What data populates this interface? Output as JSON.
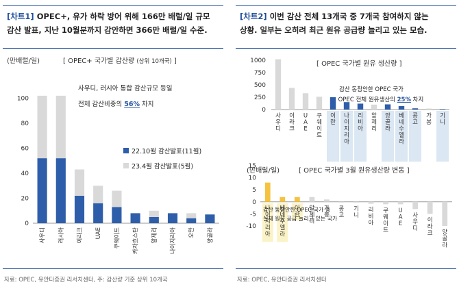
{
  "panel1": {
    "tag": "[차트1]",
    "title_line1": " OPEC+, 유가 하락 방어 위해 166만 배럴/일 규모",
    "title_line2": "감산 발표, 지난 10월분까지 감안하면 366만 배럴/일 수준.",
    "unit": "(만배럴/일)",
    "subtitle": "[ OPEC+ 국가별 감산량",
    "subtitle_small": "(상위 10개국)",
    "subtitle_close": "]",
    "annotation_line1": "사우디, 러시아 통합 감산규모 등일",
    "annotation_line2_pre": "전체 감산비중의 ",
    "annotation_line2_pct": "56%",
    "annotation_line2_post": " 차지",
    "source": "자료: OPEC, 유안타증권 리서치센터, 주: 감산량 기준 상위 10개국"
  },
  "panel2": {
    "tag": "[차트2]",
    "title_line1": " 이번 감산 전체 13개국 중 7개국 참여하지 않는",
    "title_line2": "상황. 일부는 오히려 최근 원유 공급량 늘리고 있는 모습.",
    "top_subtitle": "[ OPEC 국가별 원유 생산량 ]",
    "top_annotation_line1": "감산 동참안한 OPEC 국가",
    "top_annotation_line2_pre": "OPEC 전체 원유생산의 ",
    "top_annotation_line2_pct": "25%",
    "top_annotation_line2_post": " 차지",
    "bottom_unit": "(만배럴/일)",
    "bottom_subtitle": "[ OPEC 국가별 3월 원유생산량 변동 ]",
    "bottom_annotation_line1": "감산 동참안한 OPEC 국가 중",
    "bottom_annotation_line2": "실제 원유 공급 늘리고 있는 국가",
    "source": "자료: OPEC, 유안타증권 리서치센터"
  },
  "colors": {
    "accent": "#1f4e9c",
    "light_bar": "#d9d9d9",
    "dark_bar": "#2e5eaa",
    "yellow_bar": "#f5c242",
    "blue_highlight": "#dbe7f3",
    "yellow_highlight": "#fbf3c8"
  },
  "chart_data": [
    {
      "type": "bar",
      "categories": [
        "사우디",
        "러시아",
        "이라크",
        "UAE",
        "쿠웨이트",
        "카자흐스탄",
        "알제리",
        "나이지리아",
        "오만",
        "앙골라"
      ],
      "series": [
        {
          "name": "22.10월 감산발표(11월)",
          "values": [
            52,
            52,
            22,
            16,
            13,
            8,
            5,
            8,
            4,
            7
          ]
        },
        {
          "name": "23.4월 감산발표(5월)",
          "values": [
            50,
            50,
            21,
            14,
            13,
            0,
            5,
            0,
            4,
            0
          ]
        }
      ],
      "stacked": true,
      "ylim": [
        0,
        120
      ],
      "yticks": [
        0,
        20,
        40,
        60,
        80,
        100
      ],
      "legend": "right"
    },
    {
      "type": "bar",
      "categories": [
        "사우디",
        "이라크",
        "UAE",
        "쿠웨이트",
        "이란",
        "나이지리아",
        "리비아",
        "알제리",
        "앙골라",
        "베네수엘라",
        "콩고",
        "가봉",
        "기니"
      ],
      "values": [
        1020,
        440,
        330,
        260,
        250,
        150,
        120,
        100,
        105,
        70,
        25,
        20,
        10
      ],
      "highlight_categories": [
        "이란",
        "나이지리아",
        "리비아",
        "앙골라",
        "베네수엘라",
        "콩고",
        "기니"
      ],
      "ylim": [
        0,
        1000
      ],
      "yticks": [
        0,
        250,
        500,
        750,
        1000
      ]
    },
    {
      "type": "bar",
      "categories": [
        "나이지리아",
        "베네수엘라",
        "이란",
        "알제리",
        "가봉",
        "콩고",
        "기니",
        "리비아",
        "쿠웨이트",
        "UAE",
        "사우디",
        "이라크",
        "앙골라"
      ],
      "values": [
        8,
        2,
        2,
        2,
        1,
        -0.3,
        -0.3,
        -0.8,
        -1,
        -1,
        -3,
        -5,
        -10
      ],
      "highlight_categories": [
        "나이지리아",
        "베네수엘라",
        "이란"
      ],
      "ylim": [
        -10,
        15
      ],
      "yticks": [
        -10,
        -5,
        0,
        5,
        10,
        15
      ]
    }
  ]
}
